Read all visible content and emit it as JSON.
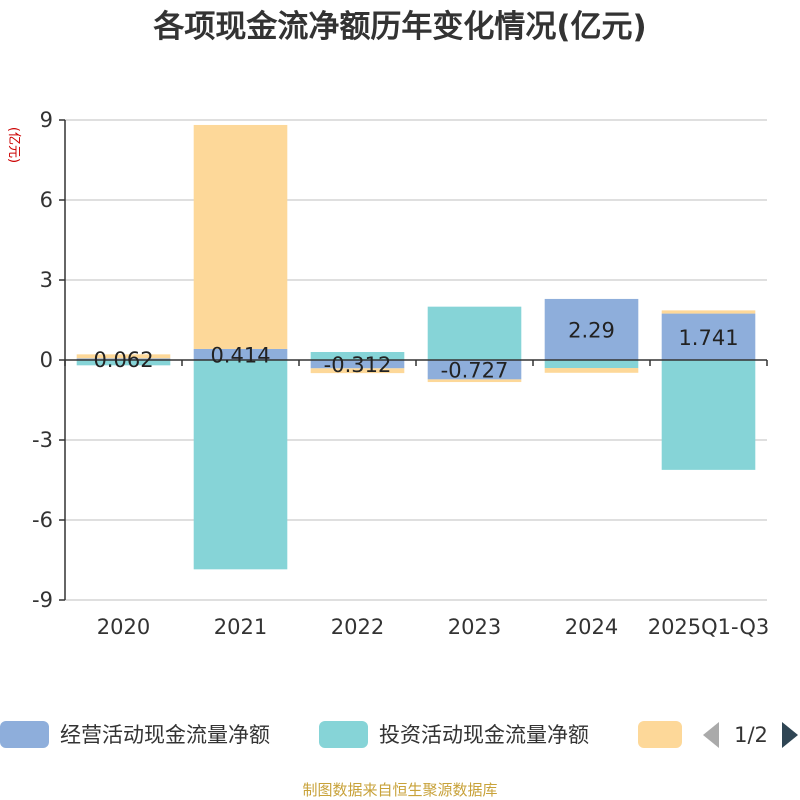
{
  "chart_data": {
    "type": "bar",
    "stacked": true,
    "title": "各项现金流净额历年变化情况(亿元)",
    "ylabel": "(亿元)",
    "xlabel": "",
    "categories": [
      "2020",
      "2021",
      "2022",
      "2023",
      "2024",
      "2025Q1-Q3"
    ],
    "ylim": [
      -9,
      9
    ],
    "yticks": [
      9,
      6,
      3,
      0,
      -3,
      -6,
      -9
    ],
    "grid": true,
    "series": [
      {
        "name": "经营活动现金流量净额",
        "color": "#8eaedb",
        "values": [
          0.062,
          0.414,
          -0.312,
          -0.727,
          2.29,
          1.741
        ]
      },
      {
        "name": "投资活动现金流量净额",
        "color": "#86d4d7",
        "values": [
          -0.2,
          -7.85,
          0.3,
          2.0,
          -0.3,
          -4.12
        ]
      },
      {
        "name": "",
        "color": "#fdd899",
        "values": [
          0.15,
          8.4,
          -0.18,
          -0.1,
          -0.18,
          0.12
        ]
      }
    ],
    "data_labels": [
      "0.062",
      "0.414",
      "-0.312",
      "-0.727",
      "2.29",
      "1.741"
    ],
    "legend_position": "bottom"
  },
  "legend": {
    "items": [
      "经营活动现金流量净额",
      "投资活动现金流量净额",
      ""
    ],
    "pager": "1/2"
  },
  "source": "制图数据来自恒生聚源数据库"
}
